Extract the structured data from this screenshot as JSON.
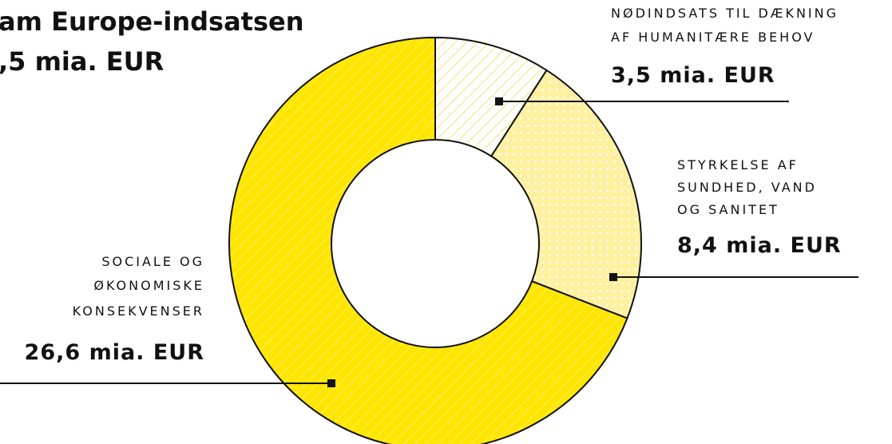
{
  "chart_data": {
    "type": "donut",
    "title": [
      "am Europe-indsatsen",
      ",5 mia. EUR"
    ],
    "categories": [
      [
        "NØDINDSATS TIL DÆKNING",
        "AF HUMANITÆRE BEHOV"
      ],
      [
        "STYRKELSE AF",
        "SUNDHED, VAND",
        "OG SANITET"
      ],
      [
        "SOCIALE OG",
        "ØKONOMISKE",
        "KONSEKVENSER"
      ]
    ],
    "values": [
      3.5,
      8.4,
      26.6
    ],
    "value_labels": [
      "3,5 mia. EUR",
      "8,4 mia. EUR",
      "26,6 mia. EUR"
    ],
    "colors": [
      "#fff6b0",
      "#fff0a0",
      "#ffe600"
    ]
  }
}
